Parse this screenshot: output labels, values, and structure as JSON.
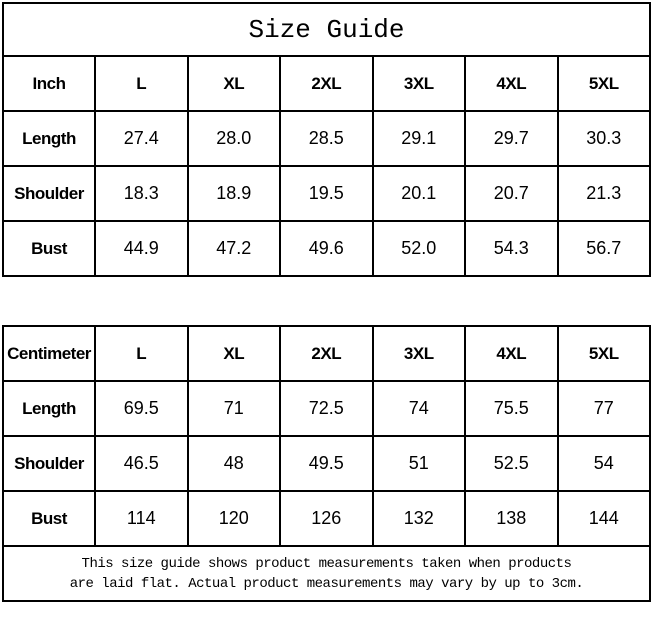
{
  "title": "Size Guide",
  "colors": {
    "border": "#000000",
    "text": "#000000",
    "background": "#ffffff"
  },
  "inch_table": {
    "unit_label": "Inch",
    "sizes": [
      "L",
      "XL",
      "2XL",
      "3XL",
      "4XL",
      "5XL"
    ],
    "rows": [
      {
        "label": "Length",
        "values": [
          "27.4",
          "28.0",
          "28.5",
          "29.1",
          "29.7",
          "30.3"
        ]
      },
      {
        "label": "Shoulder",
        "values": [
          "18.3",
          "18.9",
          "19.5",
          "20.1",
          "20.7",
          "21.3"
        ]
      },
      {
        "label": "Bust",
        "values": [
          "44.9",
          "47.2",
          "49.6",
          "52.0",
          "54.3",
          "56.7"
        ]
      }
    ]
  },
  "cm_table": {
    "unit_label": "Centimeter",
    "sizes": [
      "L",
      "XL",
      "2XL",
      "3XL",
      "4XL",
      "5XL"
    ],
    "rows": [
      {
        "label": "Length",
        "values": [
          "69.5",
          "71",
          "72.5",
          "74",
          "75.5",
          "77"
        ]
      },
      {
        "label": "Shoulder",
        "values": [
          "46.5",
          "48",
          "49.5",
          "51",
          "52.5",
          "54"
        ]
      },
      {
        "label": "Bust",
        "values": [
          "114",
          "120",
          "126",
          "132",
          "138",
          "144"
        ]
      }
    ]
  },
  "footer": {
    "line1": "This size guide shows product measurements taken when products",
    "line2": "are laid flat. Actual product measurements may vary by up to 3cm."
  }
}
